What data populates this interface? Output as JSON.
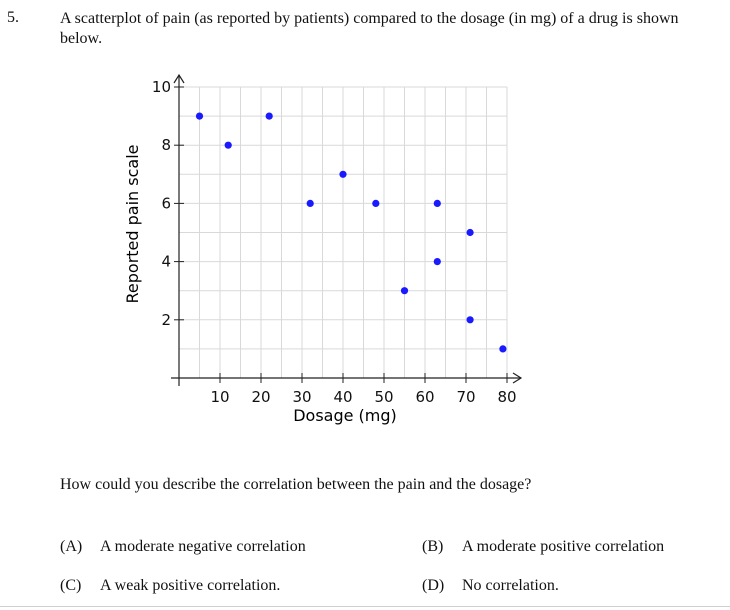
{
  "question": {
    "number": "5.",
    "text": "A scatterplot of pain (as reported by patients) compared to the dosage (in mg) of a drug is shown below.",
    "prompt": "How could you describe the correlation between the pain and the dosage?"
  },
  "choices": [
    {
      "letter": "(A)",
      "text": "A moderate negative correlation"
    },
    {
      "letter": "(B)",
      "text": "A moderate positive correlation"
    },
    {
      "letter": "(C)",
      "text": "A weak positive correlation."
    },
    {
      "letter": "(D)",
      "text": "No correlation."
    }
  ],
  "colors": {
    "points": "#1a1aff",
    "grid": "#d9d9d9",
    "axis": "#222222"
  },
  "chart_data": {
    "type": "scatter",
    "xlabel": "Dosage (mg)",
    "ylabel": "Reported pain scale",
    "xlim": [
      0,
      80
    ],
    "ylim": [
      0,
      10
    ],
    "x_ticks": [
      10,
      20,
      30,
      40,
      50,
      60,
      70,
      80
    ],
    "y_ticks": [
      2,
      4,
      6,
      8,
      10
    ],
    "grid": true,
    "points": [
      {
        "x": 5,
        "y": 9
      },
      {
        "x": 12,
        "y": 8
      },
      {
        "x": 22,
        "y": 9
      },
      {
        "x": 32,
        "y": 6
      },
      {
        "x": 40,
        "y": 7
      },
      {
        "x": 48,
        "y": 6
      },
      {
        "x": 55,
        "y": 3
      },
      {
        "x": 63,
        "y": 6
      },
      {
        "x": 63,
        "y": 4
      },
      {
        "x": 71,
        "y": 5
      },
      {
        "x": 71,
        "y": 2
      },
      {
        "x": 79,
        "y": 1
      }
    ]
  }
}
